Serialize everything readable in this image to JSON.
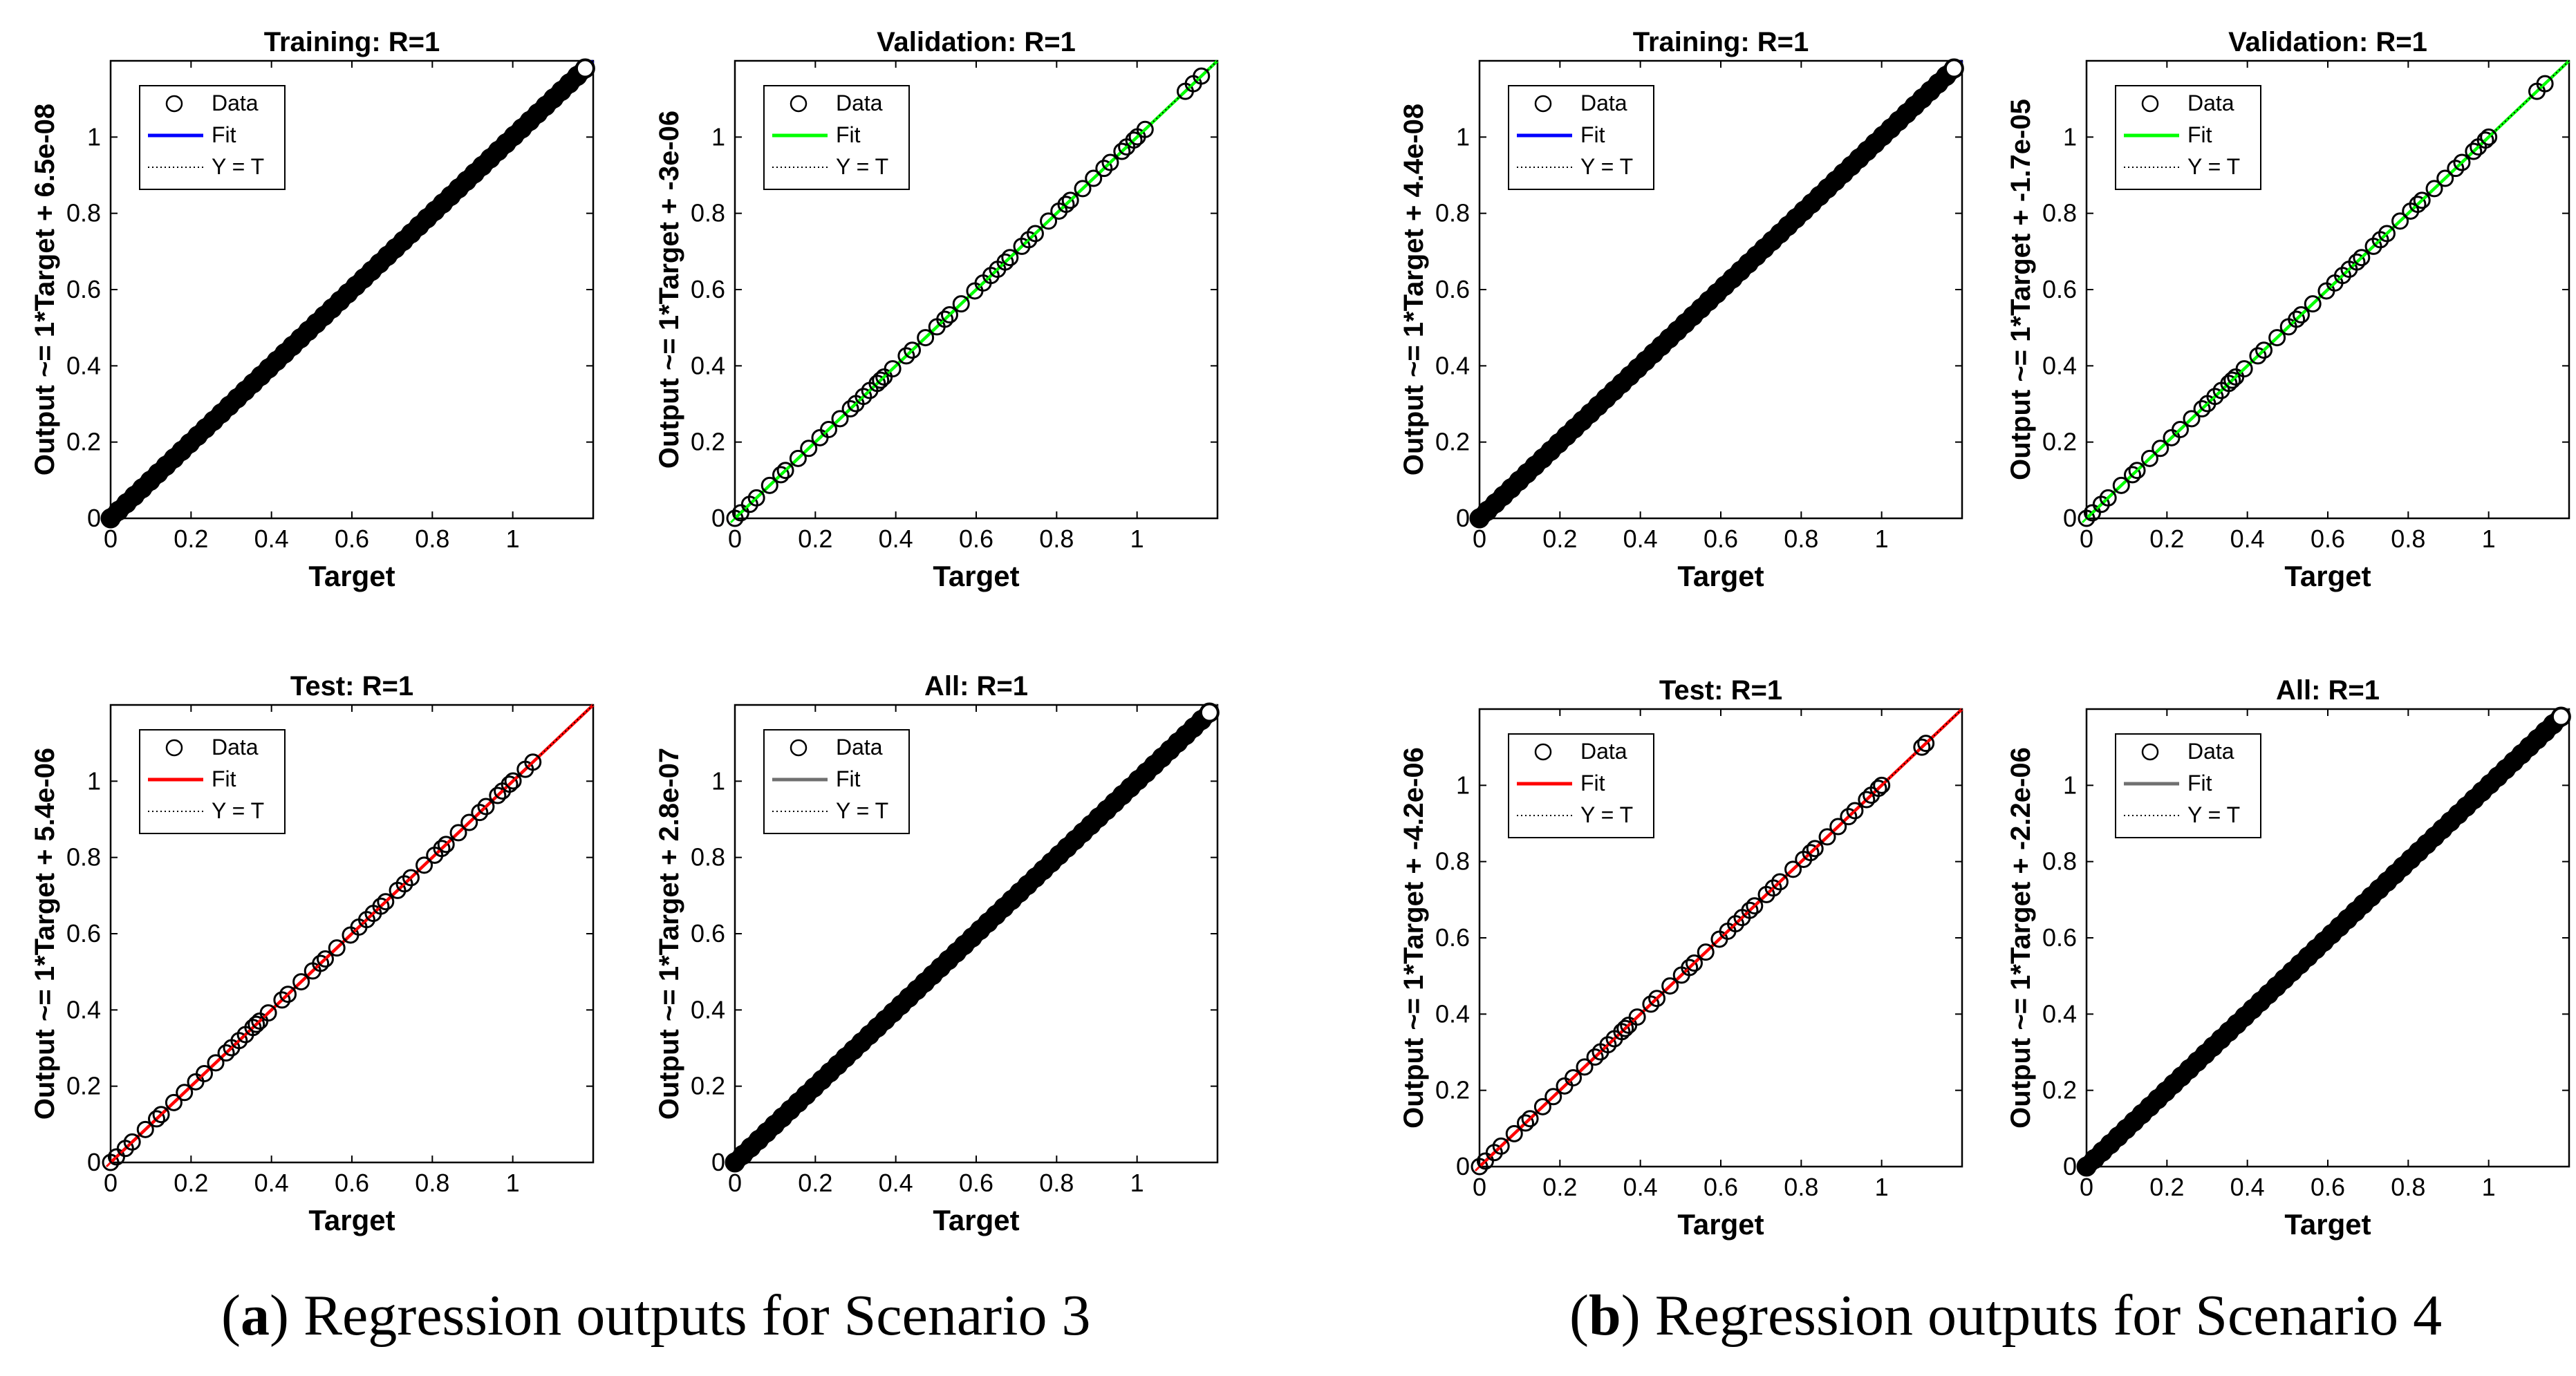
{
  "captions": [
    {
      "letter": "a",
      "text": "Regression outputs for Scenario 3"
    },
    {
      "letter": "b",
      "text": "Regression outputs for Scenario 4"
    }
  ],
  "colors": {
    "training": "#0000ff",
    "validation": "#00ff00",
    "test": "#ff0000",
    "all": "#707070",
    "marker_edge": "#000000",
    "axes": "#000000"
  },
  "chart_data": [
    {
      "type": "scatter",
      "scenario": "a",
      "title": "Training: R=1",
      "ylabel": "Output ~= 1*Target + 6.5e-08",
      "xlabel": "Target",
      "fit_series": "training",
      "xlim": [
        0,
        1.2
      ],
      "ylim": [
        0,
        1.2
      ],
      "xticks": [
        "0",
        "0.2",
        "0.4",
        "0.6",
        "0.8",
        "1"
      ],
      "yticks": [
        "0",
        "0.2",
        "0.4",
        "0.6",
        "0.8",
        "1"
      ],
      "legend": {
        "placement": "top-left",
        "entries": [
          "Data",
          "Fit",
          "Y = T"
        ]
      },
      "fit": {
        "slope": 1,
        "intercept": 6.5e-08
      },
      "x_range": [
        0,
        1.18
      ],
      "coverage": "dense"
    },
    {
      "type": "scatter",
      "scenario": "a",
      "title": "Validation: R=1",
      "ylabel": "Output ~= 1*Target + -3e-06",
      "xlabel": "Target",
      "fit_series": "validation",
      "xlim": [
        0,
        1.2
      ],
      "ylim": [
        0,
        1.2
      ],
      "xticks": [
        "0",
        "0.2",
        "0.4",
        "0.6",
        "0.8",
        "1"
      ],
      "yticks": [
        "0",
        "0.2",
        "0.4",
        "0.6",
        "0.8",
        "1"
      ],
      "legend": {
        "placement": "top-left",
        "entries": [
          "Data",
          "Fit",
          "Y = T"
        ]
      },
      "fit": {
        "slope": 1,
        "intercept": -3e-06
      },
      "x_range": [
        0,
        1.02
      ],
      "coverage": "sparse",
      "extra_points": [
        1.12,
        1.14,
        1.16
      ]
    },
    {
      "type": "scatter",
      "scenario": "b",
      "title": "Training: R=1",
      "ylabel": "Output ~= 1*Target + 4.4e-08",
      "xlabel": "Target",
      "fit_series": "training",
      "xlim": [
        0,
        1.2
      ],
      "ylim": [
        0,
        1.2
      ],
      "xticks": [
        "0",
        "0.2",
        "0.4",
        "0.6",
        "0.8",
        "1"
      ],
      "yticks": [
        "0",
        "0.2",
        "0.4",
        "0.6",
        "0.8",
        "1"
      ],
      "legend": {
        "placement": "top-left",
        "entries": [
          "Data",
          "Fit",
          "Y = T"
        ]
      },
      "fit": {
        "slope": 1,
        "intercept": 4.4e-08
      },
      "x_range": [
        0,
        1.18
      ],
      "coverage": "dense"
    },
    {
      "type": "scatter",
      "scenario": "b",
      "title": "Validation: R=1",
      "ylabel": "Output ~= 1*Target + -1.7e-05",
      "xlabel": "Target",
      "fit_series": "validation",
      "xlim": [
        0,
        1.2
      ],
      "ylim": [
        0,
        1.2
      ],
      "xticks": [
        "0",
        "0.2",
        "0.4",
        "0.6",
        "0.8",
        "1"
      ],
      "yticks": [
        "0",
        "0.2",
        "0.4",
        "0.6",
        "0.8",
        "1"
      ],
      "legend": {
        "placement": "top-left",
        "entries": [
          "Data",
          "Fit",
          "Y = T"
        ]
      },
      "fit": {
        "slope": 1,
        "intercept": -1.7e-05
      },
      "x_range": [
        0,
        1.0
      ],
      "coverage": "sparse",
      "extra_points": [
        1.12,
        1.14
      ]
    },
    {
      "type": "scatter",
      "scenario": "a",
      "title": "Test: R=1",
      "ylabel": "Output ~= 1*Target + 5.4e-06",
      "xlabel": "Target",
      "fit_series": "test",
      "xlim": [
        0,
        1.2
      ],
      "ylim": [
        0,
        1.2
      ],
      "xticks": [
        "0",
        "0.2",
        "0.4",
        "0.6",
        "0.8",
        "1"
      ],
      "yticks": [
        "0",
        "0.2",
        "0.4",
        "0.6",
        "0.8",
        "1"
      ],
      "legend": {
        "placement": "top-left",
        "entries": [
          "Data",
          "Fit",
          "Y = T"
        ]
      },
      "fit": {
        "slope": 1,
        "intercept": 5.4e-06
      },
      "x_range": [
        0,
        1.05
      ],
      "coverage": "sparse",
      "extra_points": []
    },
    {
      "type": "scatter",
      "scenario": "a",
      "title": "All: R=1",
      "ylabel": "Output ~= 1*Target + 2.8e-07",
      "xlabel": "Target",
      "fit_series": "all",
      "xlim": [
        0,
        1.2
      ],
      "ylim": [
        0,
        1.2
      ],
      "xticks": [
        "0",
        "0.2",
        "0.4",
        "0.6",
        "0.8",
        "1"
      ],
      "yticks": [
        "0",
        "0.2",
        "0.4",
        "0.6",
        "0.8",
        "1"
      ],
      "legend": {
        "placement": "top-left",
        "entries": [
          "Data",
          "Fit",
          "Y = T"
        ]
      },
      "fit": {
        "slope": 1,
        "intercept": 2.8e-07
      },
      "x_range": [
        0,
        1.18
      ],
      "coverage": "dense"
    },
    {
      "type": "scatter",
      "scenario": "b",
      "title": "Test: R=1",
      "ylabel": "Output ~= 1*Target + -4.2e-06",
      "xlabel": "Target",
      "fit_series": "test",
      "xlim": [
        0,
        1.2
      ],
      "ylim": [
        0,
        1.2
      ],
      "xticks": [
        "0",
        "0.2",
        "0.4",
        "0.6",
        "0.8",
        "1"
      ],
      "yticks": [
        "0",
        "0.2",
        "0.4",
        "0.6",
        "0.8",
        "1"
      ],
      "legend": {
        "placement": "top-left",
        "entries": [
          "Data",
          "Fit",
          "Y = T"
        ]
      },
      "fit": {
        "slope": 1,
        "intercept": -4.2e-06
      },
      "x_range": [
        0,
        1.0
      ],
      "coverage": "sparse",
      "extra_points": [
        1.1,
        1.11
      ]
    },
    {
      "type": "scatter",
      "scenario": "b",
      "title": "All: R=1",
      "ylabel": "Output ~= 1*Target + -2.2e-06",
      "xlabel": "Target",
      "fit_series": "all",
      "xlim": [
        0,
        1.2
      ],
      "ylim": [
        0,
        1.2
      ],
      "xticks": [
        "0",
        "0.2",
        "0.4",
        "0.6",
        "0.8",
        "1"
      ],
      "yticks": [
        "0",
        "0.2",
        "0.4",
        "0.6",
        "0.8",
        "1"
      ],
      "legend": {
        "placement": "top-left",
        "entries": [
          "Data",
          "Fit",
          "Y = T"
        ]
      },
      "fit": {
        "slope": 1,
        "intercept": -2.2e-06
      },
      "x_range": [
        0,
        1.18
      ],
      "coverage": "dense"
    }
  ]
}
